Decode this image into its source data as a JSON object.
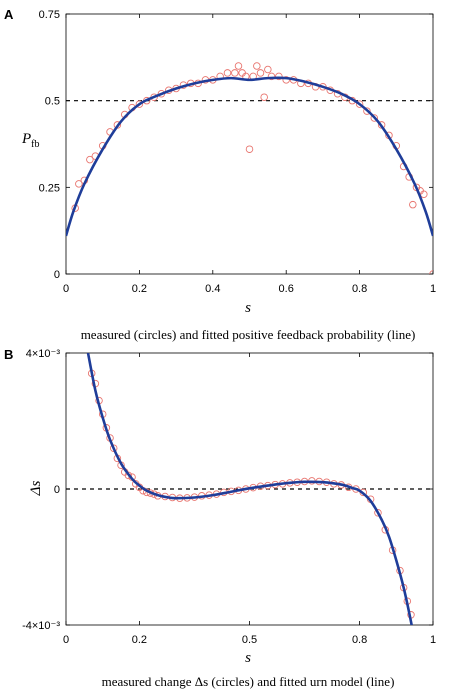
{
  "chart_data": [
    {
      "panel": "A",
      "type": "scatter",
      "caption": "measured (circles) and fitted positive feedback probability (line)",
      "xlabel": "s",
      "ylabel": "P",
      "ylabel_sub": "fb",
      "xlim": [
        0,
        1
      ],
      "ylim": [
        0,
        0.75
      ],
      "xticks": [
        "0",
        "0.2",
        "0.4",
        "0.6",
        "0.8",
        "1"
      ],
      "yticks": [
        "0",
        "0.25",
        "0.5",
        "0.75"
      ],
      "reference_line": 0.5,
      "colors": {
        "points": "#e8756f",
        "fit": "#1f3d99",
        "reference": "#000000"
      },
      "fit_curve": [
        [
          0,
          0.11
        ],
        [
          0.02,
          0.18
        ],
        [
          0.05,
          0.26
        ],
        [
          0.1,
          0.36
        ],
        [
          0.15,
          0.44
        ],
        [
          0.2,
          0.49
        ],
        [
          0.25,
          0.515
        ],
        [
          0.3,
          0.535
        ],
        [
          0.35,
          0.55
        ],
        [
          0.4,
          0.56
        ],
        [
          0.45,
          0.565
        ],
        [
          0.5,
          0.56
        ],
        [
          0.55,
          0.565
        ],
        [
          0.6,
          0.565
        ],
        [
          0.65,
          0.555
        ],
        [
          0.7,
          0.54
        ],
        [
          0.75,
          0.52
        ],
        [
          0.8,
          0.49
        ],
        [
          0.85,
          0.44
        ],
        [
          0.9,
          0.36
        ],
        [
          0.95,
          0.26
        ],
        [
          0.98,
          0.18
        ],
        [
          1,
          0.11
        ]
      ],
      "measured": [
        [
          0.025,
          0.19
        ],
        [
          0.035,
          0.26
        ],
        [
          0.05,
          0.27
        ],
        [
          0.065,
          0.33
        ],
        [
          0.08,
          0.34
        ],
        [
          0.1,
          0.37
        ],
        [
          0.12,
          0.41
        ],
        [
          0.14,
          0.43
        ],
        [
          0.16,
          0.46
        ],
        [
          0.18,
          0.48
        ],
        [
          0.2,
          0.49
        ],
        [
          0.22,
          0.5
        ],
        [
          0.24,
          0.51
        ],
        [
          0.26,
          0.52
        ],
        [
          0.28,
          0.53
        ],
        [
          0.3,
          0.535
        ],
        [
          0.32,
          0.545
        ],
        [
          0.34,
          0.55
        ],
        [
          0.36,
          0.55
        ],
        [
          0.38,
          0.56
        ],
        [
          0.4,
          0.56
        ],
        [
          0.42,
          0.57
        ],
        [
          0.44,
          0.58
        ],
        [
          0.46,
          0.58
        ],
        [
          0.47,
          0.6
        ],
        [
          0.48,
          0.58
        ],
        [
          0.49,
          0.57
        ],
        [
          0.5,
          0.36
        ],
        [
          0.51,
          0.57
        ],
        [
          0.52,
          0.6
        ],
        [
          0.53,
          0.58
        ],
        [
          0.54,
          0.51
        ],
        [
          0.55,
          0.59
        ],
        [
          0.56,
          0.57
        ],
        [
          0.58,
          0.57
        ],
        [
          0.6,
          0.56
        ],
        [
          0.62,
          0.56
        ],
        [
          0.64,
          0.55
        ],
        [
          0.66,
          0.55
        ],
        [
          0.68,
          0.54
        ],
        [
          0.7,
          0.54
        ],
        [
          0.72,
          0.53
        ],
        [
          0.74,
          0.52
        ],
        [
          0.76,
          0.51
        ],
        [
          0.78,
          0.5
        ],
        [
          0.8,
          0.49
        ],
        [
          0.82,
          0.47
        ],
        [
          0.84,
          0.45
        ],
        [
          0.86,
          0.43
        ],
        [
          0.88,
          0.4
        ],
        [
          0.9,
          0.37
        ],
        [
          0.92,
          0.31
        ],
        [
          0.935,
          0.28
        ],
        [
          0.945,
          0.2
        ],
        [
          0.955,
          0.25
        ],
        [
          0.965,
          0.24
        ],
        [
          0.975,
          0.23
        ],
        [
          1.0,
          0.0
        ]
      ]
    },
    {
      "panel": "B",
      "type": "scatter",
      "caption": "measured change Δs (circles) and fitted urn model (line)",
      "xlabel": "s",
      "ylabel": "Δs",
      "xlim": [
        0,
        1
      ],
      "ylim": [
        -0.004,
        0.004
      ],
      "xticks": [
        "0",
        "0.2",
        "0.5",
        "0.8",
        "1"
      ],
      "xtick_values": [
        0,
        0.2,
        0.5,
        0.8,
        1
      ],
      "yticks": [
        "-4×10⁻³",
        "0",
        "4×10⁻³"
      ],
      "reference_line": 0,
      "colors": {
        "points": "#e8756f",
        "fit": "#1f3d99",
        "reference": "#000000"
      },
      "fit_curve": [
        [
          0.06,
          0.004
        ],
        [
          0.08,
          0.0029
        ],
        [
          0.1,
          0.0021
        ],
        [
          0.12,
          0.00145
        ],
        [
          0.15,
          0.00075
        ],
        [
          0.18,
          0.0003
        ],
        [
          0.2,
          0.0001
        ],
        [
          0.22,
          -5e-05
        ],
        [
          0.25,
          -0.00018
        ],
        [
          0.28,
          -0.00025
        ],
        [
          0.3,
          -0.00027
        ],
        [
          0.35,
          -0.00025
        ],
        [
          0.4,
          -0.00018
        ],
        [
          0.45,
          -8e-05
        ],
        [
          0.5,
          2e-05
        ],
        [
          0.55,
          0.0001
        ],
        [
          0.6,
          0.00017
        ],
        [
          0.65,
          0.00021
        ],
        [
          0.7,
          0.0002
        ],
        [
          0.75,
          0.00013
        ],
        [
          0.78,
          3e-05
        ],
        [
          0.8,
          -5e-05
        ],
        [
          0.83,
          -0.00035
        ],
        [
          0.86,
          -0.0009
        ],
        [
          0.88,
          -0.0014
        ],
        [
          0.9,
          -0.0021
        ],
        [
          0.92,
          -0.0029
        ],
        [
          0.94,
          -0.0039
        ],
        [
          0.946,
          -0.0043
        ]
      ],
      "measured": [
        [
          0.07,
          0.0034
        ],
        [
          0.08,
          0.0031
        ],
        [
          0.09,
          0.0026
        ],
        [
          0.1,
          0.0022
        ],
        [
          0.11,
          0.0018
        ],
        [
          0.12,
          0.0015
        ],
        [
          0.13,
          0.0012
        ],
        [
          0.14,
          0.0009
        ],
        [
          0.15,
          0.0007
        ],
        [
          0.16,
          0.0005
        ],
        [
          0.17,
          0.0004
        ],
        [
          0.18,
          0.00035
        ],
        [
          0.19,
          0.00015
        ],
        [
          0.2,
          5e-05
        ],
        [
          0.21,
          -5e-05
        ],
        [
          0.22,
          -0.0001
        ],
        [
          0.23,
          -0.00012
        ],
        [
          0.24,
          -0.00015
        ],
        [
          0.25,
          -0.0002
        ],
        [
          0.27,
          -0.00022
        ],
        [
          0.29,
          -0.00025
        ],
        [
          0.31,
          -0.00027
        ],
        [
          0.33,
          -0.00026
        ],
        [
          0.35,
          -0.00024
        ],
        [
          0.37,
          -0.0002
        ],
        [
          0.39,
          -0.00018
        ],
        [
          0.41,
          -0.00015
        ],
        [
          0.43,
          -0.0001
        ],
        [
          0.45,
          -7e-05
        ],
        [
          0.47,
          -4e-05
        ],
        [
          0.49,
          0.0
        ],
        [
          0.51,
          4e-05
        ],
        [
          0.53,
          8e-05
        ],
        [
          0.55,
          0.0001
        ],
        [
          0.57,
          0.00013
        ],
        [
          0.59,
          0.00015
        ],
        [
          0.61,
          0.00018
        ],
        [
          0.63,
          0.0002
        ],
        [
          0.65,
          0.00022
        ],
        [
          0.67,
          0.00024
        ],
        [
          0.69,
          0.00022
        ],
        [
          0.71,
          0.0002
        ],
        [
          0.73,
          0.00015
        ],
        [
          0.75,
          0.00012
        ],
        [
          0.77,
          5e-05
        ],
        [
          0.79,
          0.0
        ],
        [
          0.81,
          -0.0001
        ],
        [
          0.83,
          -0.0003
        ],
        [
          0.85,
          -0.0007
        ],
        [
          0.87,
          -0.0012
        ],
        [
          0.89,
          -0.0018
        ],
        [
          0.91,
          -0.0024
        ],
        [
          0.92,
          -0.0029
        ],
        [
          0.93,
          -0.0033
        ],
        [
          0.94,
          -0.0037
        ]
      ]
    }
  ]
}
